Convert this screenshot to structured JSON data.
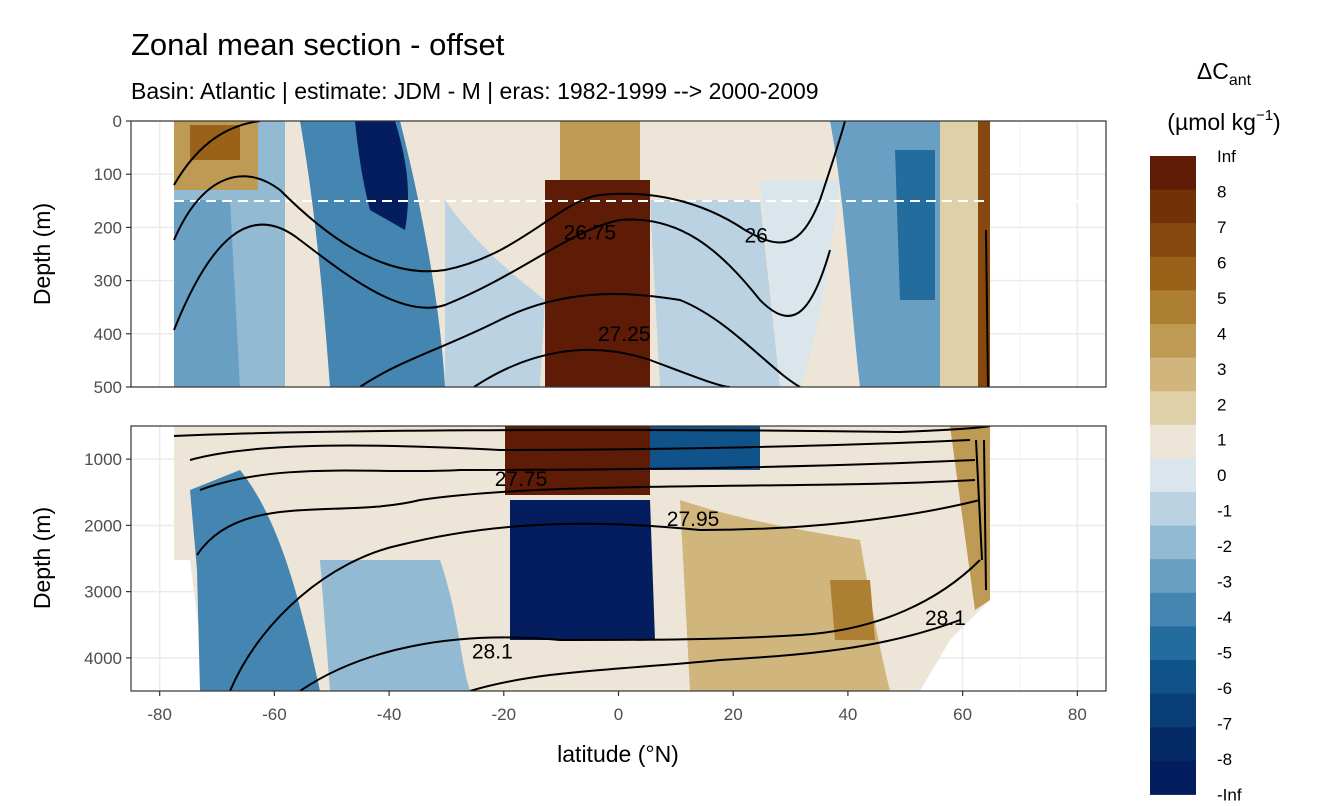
{
  "chart_data": {
    "type": "heatmap",
    "title": "Zonal mean section - offset",
    "subtitle": "Basin: Atlantic | estimate: JDM - M | eras: 1982-1999 --> 2000-2009",
    "xlabel": "latitude (°N)",
    "ylabel": "Depth (m)",
    "x_ticks": [
      -80,
      -60,
      -40,
      -20,
      0,
      20,
      40,
      60,
      80
    ],
    "xlim": [
      -85,
      85
    ],
    "panels": [
      {
        "name": "upper",
        "ylim": [
          0,
          500
        ],
        "y_ticks": [
          0,
          100,
          200,
          300,
          400,
          500
        ],
        "reference_depth_dashed": 150
      },
      {
        "name": "lower",
        "ylim": [
          500,
          4500
        ],
        "y_ticks": [
          1000,
          2000,
          3000,
          4000
        ]
      }
    ],
    "contour_labels": [
      {
        "text": "26.75",
        "lat": -5,
        "depth": 210,
        "panel": "upper"
      },
      {
        "text": "26",
        "lat": 24,
        "depth": 215,
        "panel": "upper"
      },
      {
        "text": "27.25",
        "lat": 1,
        "depth": 400,
        "panel": "upper"
      },
      {
        "text": "27.75",
        "lat": -17,
        "depth": 1300,
        "panel": "lower"
      },
      {
        "text": "27.95",
        "lat": 13,
        "depth": 1900,
        "panel": "lower"
      },
      {
        "text": "28.1",
        "lat": -22,
        "depth": 3900,
        "panel": "lower"
      },
      {
        "text": "28.1",
        "lat": 57,
        "depth": 3400,
        "panel": "lower"
      }
    ],
    "legend": {
      "title_main": "ΔC",
      "title_sub": "ant",
      "units": "(µmol kg",
      "units_sup": "−1",
      "units_end": ")",
      "labels": [
        "Inf",
        "8",
        "7",
        "6",
        "5",
        "4",
        "3",
        "2",
        "1",
        "0",
        "-1",
        "-2",
        "-3",
        "-4",
        "-5",
        "-6",
        "-7",
        "-8",
        "-Inf"
      ],
      "colors": [
        "#5e1b05",
        "#733108",
        "#87480f",
        "#9a6219",
        "#ad7f33",
        "#bf9a55",
        "#d0b67d",
        "#e0d0a8",
        "#ede6d8",
        "#dbe5ec",
        "#bad2e1",
        "#93bad3",
        "#6a9fc4",
        "#4485b1",
        "#226c9e",
        "#0f538a",
        "#093d76",
        "#052b66",
        "#041d5e"
      ]
    }
  }
}
